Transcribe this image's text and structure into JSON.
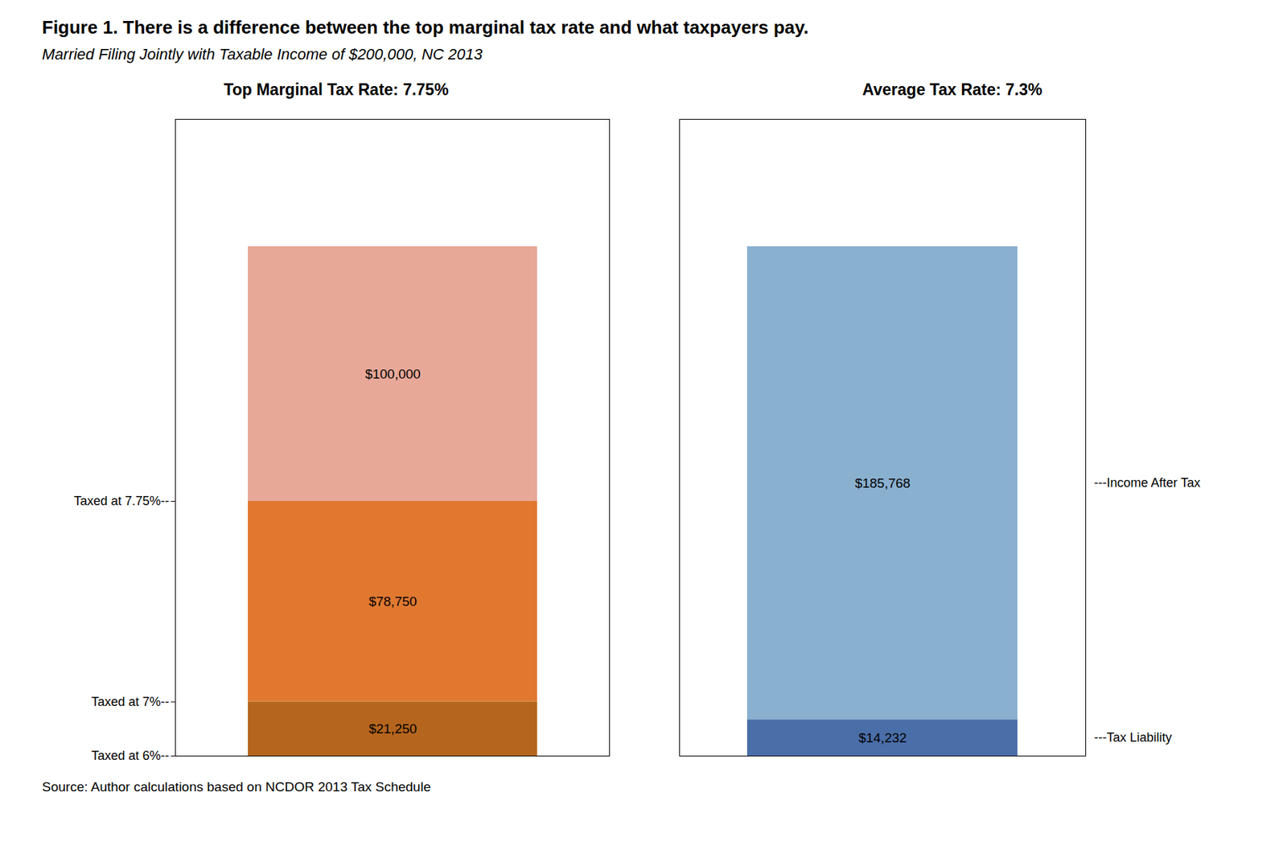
{
  "title": "Figure 1.  There is a difference between the top marginal tax rate and what taxpayers pay.",
  "subtitle": "Married Filing Jointly with Taxable Income of $200,000, NC 2013",
  "source": "Source: Author calculations based on NCDOR 2013 Tax Schedule",
  "chart_data": [
    {
      "type": "bar",
      "stacked": true,
      "title": "Top Marginal Tax Rate: 7.75%",
      "values": [
        21250,
        78750,
        100000
      ],
      "value_labels": [
        "$21,250",
        "$78,750",
        "$100,000"
      ],
      "colors": [
        "#b5651d",
        "#e07830",
        "#e8a898"
      ],
      "data_labels": true,
      "ylim": [
        0,
        250000
      ],
      "yticks": [
        {
          "value": 0,
          "label": "Taxed at 6%--"
        },
        {
          "value": 21250,
          "label": "Taxed at 7%--"
        },
        {
          "value": 100000,
          "label": "Taxed at 7.75%--"
        }
      ],
      "tick_labels": "y"
    },
    {
      "type": "bar",
      "stacked": true,
      "title": "Average Tax Rate: 7.3%",
      "values": [
        14232,
        185768
      ],
      "value_labels": [
        "$14,232",
        "$185,768"
      ],
      "colors": [
        "#4a6ea8",
        "#8ab0d0"
      ],
      "data_labels": true,
      "annotations": [
        "---Tax Liability",
        "---Income After Tax"
      ],
      "ylim": [
        0,
        250000
      ],
      "yticks": [],
      "tick_labels": false
    }
  ]
}
